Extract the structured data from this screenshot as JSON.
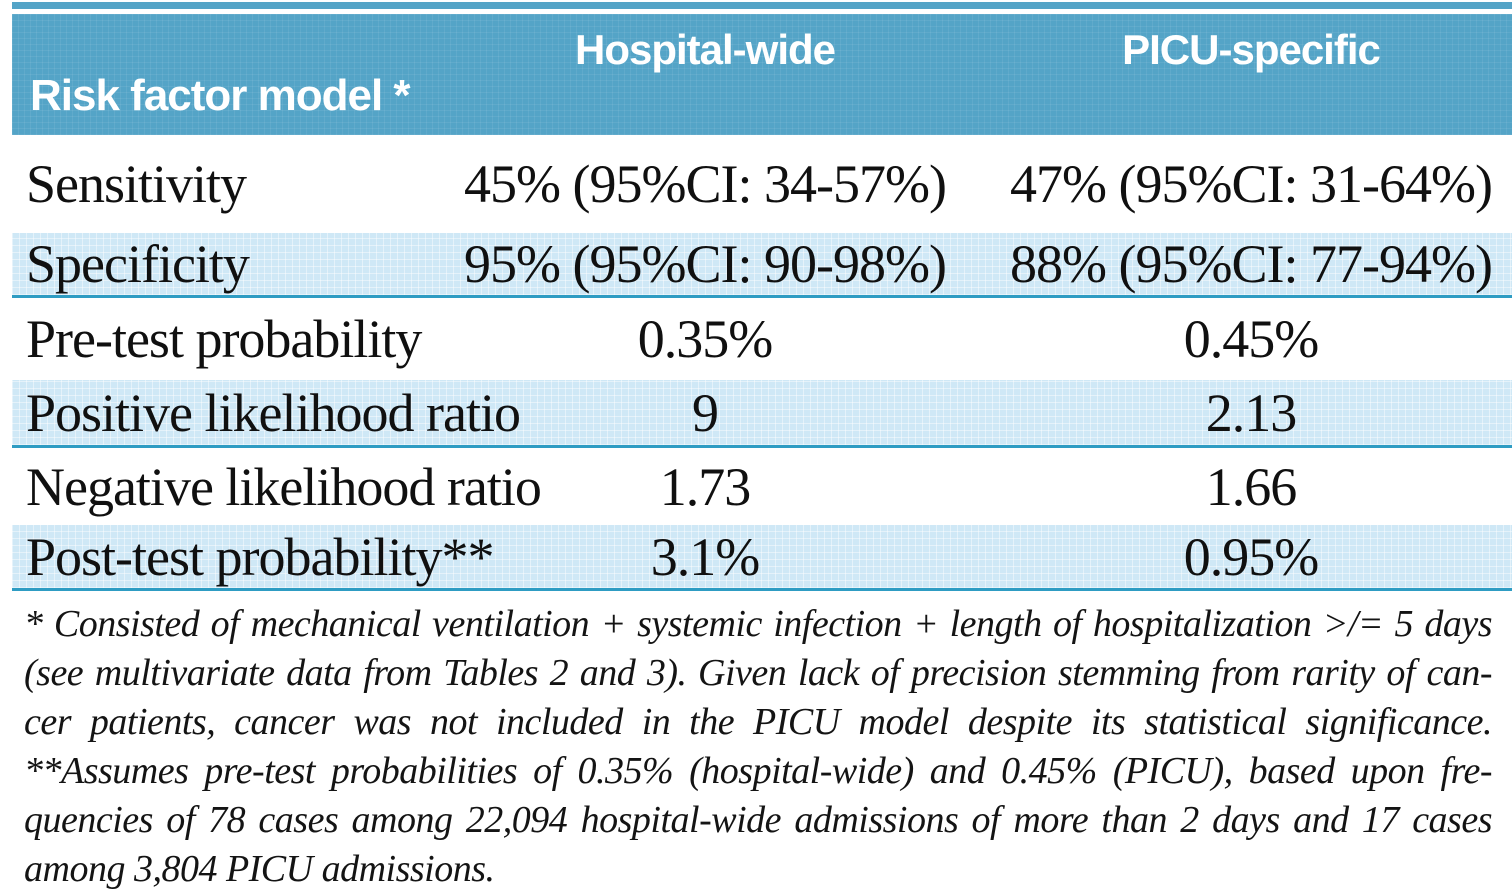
{
  "table": {
    "corner_header": "Risk factor model *",
    "columns": [
      "Hospital-wide",
      "PICU-specific"
    ],
    "rows": [
      {
        "label": "Sensitivity",
        "hospital": "45% (95%CI: 34-57%)",
        "picu": "47% (95%CI: 31-64%)"
      },
      {
        "label": "Specificity",
        "hospital": "95% (95%CI: 90-98%)",
        "picu": "88% (95%CI: 77-94%)"
      },
      {
        "label": "Pre-test probability",
        "hospital": "0.35%",
        "picu": "0.45%"
      },
      {
        "label": "Positive likelihood ratio",
        "hospital": "9",
        "picu": "2.13"
      },
      {
        "label": "Negative likelihood ratio",
        "hospital": "1.73",
        "picu": "1.66"
      },
      {
        "label": "Post-test probability**",
        "hospital": "3.1%",
        "picu": "0.95%"
      }
    ]
  },
  "footnote": {
    "lines": [
      "* Consisted of mechanical ventilation + systemic infection + length of hospitalization >/= 5 days",
      "(see multivariate data from Tables 2 and 3). Given lack of precision stemming from rarity of can-",
      "cer patients, cancer was not included in the PICU model despite its statistical significance.",
      "**Assumes pre-test probabilities of 0.35% (hospital-wide) and 0.45% (PICU), based upon fre-",
      "quencies of 78 cases among 22,094 hospital-wide admissions of more than 2 days and 17 cases",
      "among 3,804 PICU admissions."
    ]
  },
  "colors": {
    "header_teal": "#54a4c7",
    "row_light_blue": "#cfe8f6",
    "row_rule_teal": "#2e9cc3",
    "text_ink": "#101010"
  }
}
